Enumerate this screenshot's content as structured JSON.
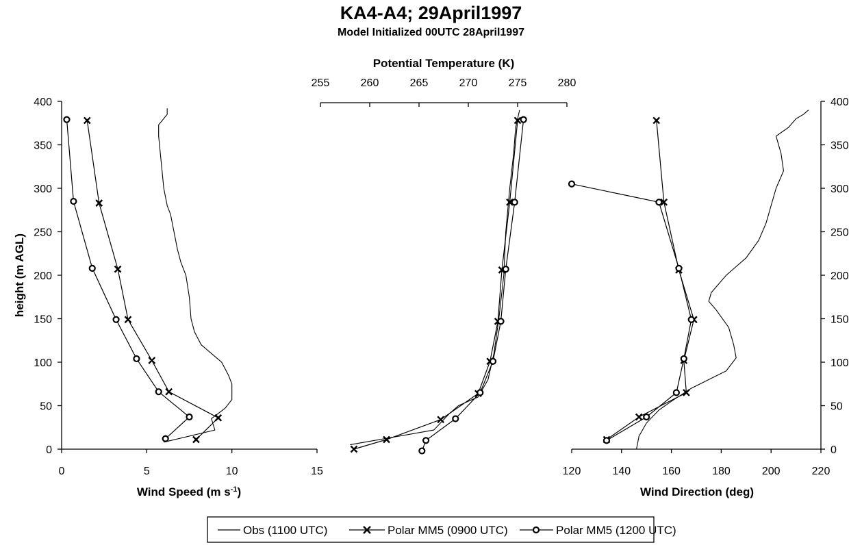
{
  "title": "KA4-A4; 29April1997",
  "subtitle": "Model Initialized 00UTC 28April1997",
  "legend": [
    {
      "label": "Obs (1100 UTC)",
      "marker": "none"
    },
    {
      "label": "Polar MM5 (0900 UTC)",
      "marker": "x"
    },
    {
      "label": "Polar MM5 (1200 UTC)",
      "marker": "o"
    }
  ],
  "shared_y": {
    "label": "height (m AGL)",
    "lim": [
      0,
      400
    ],
    "ticks": [
      0,
      50,
      100,
      150,
      200,
      250,
      300,
      350,
      400
    ]
  },
  "chart_data": [
    {
      "type": "line",
      "name": "wind-speed",
      "xlabel": "Wind Speed (m s",
      "xlabel_sup": "-1",
      "xlabel_end": ")",
      "ylabel": "height (m AGL)",
      "xlim": [
        0,
        15
      ],
      "ylim": [
        0,
        400
      ],
      "xticks": [
        0,
        5,
        10,
        15
      ],
      "yticks": [
        0,
        50,
        100,
        150,
        200,
        250,
        300,
        350,
        400
      ],
      "series": [
        {
          "name": "Obs (1100 UTC)",
          "marker": "none",
          "x": [
            6.0,
            9.0,
            8.8,
            9.6,
            10.0,
            10.0,
            9.8,
            9.4,
            8.8,
            8.2,
            7.8,
            7.6,
            7.5,
            7.3,
            7.0,
            6.8,
            6.6,
            6.5,
            6.4,
            6.2,
            6.1,
            6.0,
            5.9,
            5.8,
            5.7,
            5.7,
            6.2,
            6.2
          ],
          "y": [
            8,
            22,
            35,
            47,
            57,
            75,
            85,
            100,
            110,
            120,
            135,
            150,
            175,
            200,
            215,
            230,
            250,
            260,
            270,
            280,
            290,
            300,
            320,
            340,
            360,
            373,
            385,
            392
          ]
        },
        {
          "name": "Polar MM5 (0900 UTC)",
          "marker": "x",
          "x": [
            7.9,
            9.2,
            6.3,
            5.3,
            3.9,
            3.3,
            2.2,
            1.5
          ],
          "y": [
            11,
            36,
            66,
            102,
            149,
            207,
            283,
            378
          ]
        },
        {
          "name": "Polar MM5 (1200 UTC)",
          "marker": "o",
          "x": [
            6.1,
            7.5,
            5.7,
            4.4,
            3.2,
            1.8,
            0.7,
            0.3
          ],
          "y": [
            12,
            37,
            66,
            104,
            149,
            208,
            285,
            379
          ]
        }
      ]
    },
    {
      "type": "line",
      "name": "potential-temperature",
      "xlabel": "Potential Temperature (K)",
      "xaxis_position": "top",
      "xlim": [
        255,
        280
      ],
      "ylim": [
        0,
        400
      ],
      "xticks": [
        255,
        260,
        265,
        270,
        275,
        280
      ],
      "series": [
        {
          "name": "Obs (1100 UTC)",
          "marker": "none",
          "x": [
            258.0,
            266.5,
            268.0,
            269.0,
            270.0,
            271.0,
            272.0,
            272.6,
            273.1,
            273.6,
            273.8,
            274.2,
            274.6,
            274.8,
            275.0,
            275.2
          ],
          "y": [
            5,
            22,
            40,
            50,
            55,
            60,
            80,
            110,
            150,
            200,
            250,
            300,
            340,
            370,
            380,
            390
          ]
        },
        {
          "name": "Polar MM5 (0900 UTC)",
          "marker": "x",
          "x": [
            258.4,
            261.7,
            267.2,
            271.0,
            272.2,
            273.0,
            273.4,
            274.2,
            275.0
          ],
          "y": [
            0,
            11,
            34,
            64,
            101,
            147,
            206,
            284,
            378
          ]
        },
        {
          "name": "Polar MM5 (1200 UTC)",
          "marker": "o",
          "x": [
            265.3,
            265.7,
            268.7,
            271.2,
            272.5,
            273.3,
            273.8,
            274.7,
            275.6
          ],
          "y": [
            -2,
            10,
            35,
            65,
            101,
            147,
            207,
            284,
            379
          ]
        }
      ]
    },
    {
      "type": "line",
      "name": "wind-direction",
      "xlabel": "Wind Direction (deg)",
      "xlim": [
        120,
        220
      ],
      "ylim": [
        0,
        400
      ],
      "xticks": [
        120,
        140,
        160,
        180,
        200,
        220
      ],
      "yticks": [
        0,
        50,
        100,
        150,
        200,
        250,
        300,
        350,
        400
      ],
      "series": [
        {
          "name": "Obs (1100 UTC)",
          "marker": "none",
          "x": [
            146,
            147,
            150,
            155,
            160,
            168,
            175,
            182,
            186,
            185,
            183,
            178,
            175,
            176,
            182,
            190,
            195,
            198,
            200,
            202,
            205,
            204,
            202,
            207,
            210,
            213,
            215
          ],
          "y": [
            0,
            15,
            30,
            45,
            55,
            70,
            80,
            90,
            105,
            120,
            140,
            160,
            170,
            180,
            200,
            220,
            240,
            260,
            280,
            300,
            320,
            340,
            360,
            370,
            380,
            385,
            390
          ]
        },
        {
          "name": "Polar MM5 (0900 UTC)",
          "marker": "x",
          "x": [
            134,
            147,
            166,
            165,
            169,
            163,
            157,
            154
          ],
          "y": [
            11,
            37,
            65,
            102,
            149,
            206,
            284,
            378
          ]
        },
        {
          "name": "Polar MM5 (1200 UTC)",
          "marker": "o",
          "x": [
            120,
            155,
            163,
            168,
            165,
            162,
            150,
            134
          ],
          "y": [
            305,
            284,
            208,
            149,
            104,
            65,
            37,
            10
          ]
        }
      ]
    }
  ]
}
